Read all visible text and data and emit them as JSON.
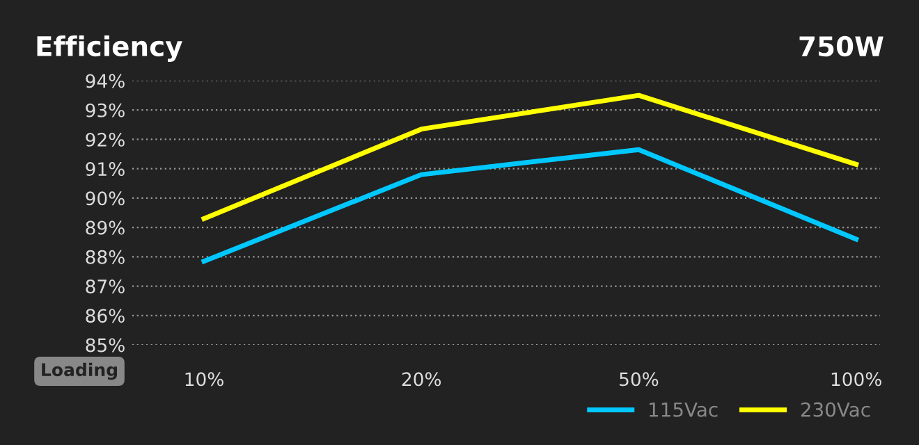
{
  "chart_data": {
    "type": "line",
    "title": "Efficiency",
    "subtitle": "750W",
    "xlabel": "Loading",
    "categories": [
      "10%",
      "20%",
      "50%",
      "100%"
    ],
    "series": [
      {
        "name": "115Vac",
        "color": "#00c8ff",
        "values": [
          87.85,
          90.8,
          91.65,
          88.6
        ]
      },
      {
        "name": "230Vac",
        "color": "#ffff00",
        "values": [
          89.3,
          92.35,
          93.5,
          91.15
        ]
      }
    ],
    "ylim": [
      85,
      94
    ],
    "yticks": [
      {
        "value": 85,
        "label": "85%"
      },
      {
        "value": 86,
        "label": "86%"
      },
      {
        "value": 87,
        "label": "87%"
      },
      {
        "value": 88,
        "label": "88%"
      },
      {
        "value": 89,
        "label": "89%"
      },
      {
        "value": 90,
        "label": "90%"
      },
      {
        "value": 91,
        "label": "91%"
      },
      {
        "value": 92,
        "label": "92%"
      },
      {
        "value": 93,
        "label": "93%"
      },
      {
        "value": 94,
        "label": "94%"
      }
    ],
    "grid": "y",
    "legend": "bottom right",
    "marker": "none",
    "line_style": "solid"
  }
}
